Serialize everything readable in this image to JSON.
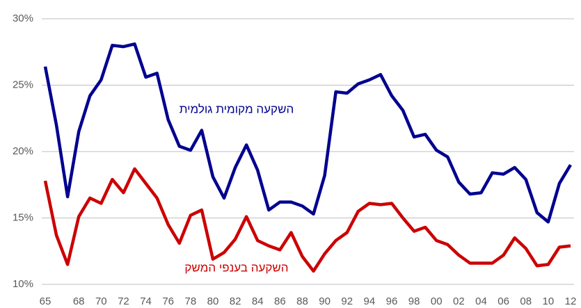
{
  "chart_data": {
    "type": "line",
    "categories": [
      "65",
      null,
      null,
      "68",
      null,
      "70",
      null,
      "72",
      null,
      "74",
      null,
      "76",
      null,
      "78",
      null,
      "80",
      null,
      "82",
      null,
      "84",
      null,
      "86",
      null,
      "88",
      null,
      "90",
      null,
      "92",
      null,
      "94",
      null,
      "96",
      null,
      "98",
      null,
      "00",
      null,
      "02",
      null,
      "04",
      null,
      "06",
      null,
      "08",
      null,
      "10",
      null,
      "12"
    ],
    "series": [
      {
        "name": "השקעה מקומית גולמית",
        "color": "#000090",
        "values": [
          26.4,
          22.0,
          16.6,
          21.5,
          24.2,
          25.4,
          28.0,
          27.9,
          28.1,
          25.6,
          25.9,
          22.4,
          20.4,
          20.1,
          21.6,
          18.1,
          16.5,
          18.8,
          20.5,
          18.6,
          15.6,
          16.2,
          16.2,
          15.9,
          15.3,
          18.2,
          24.5,
          24.4,
          25.1,
          25.4,
          25.8,
          24.2,
          23.1,
          21.1,
          21.3,
          20.1,
          19.6,
          17.7,
          16.8,
          16.9,
          18.4,
          18.3,
          18.8,
          17.9,
          15.4,
          14.7,
          17.6,
          19.0
        ]
      },
      {
        "name": "השקעה בענפי המשק",
        "color": "#cc0000",
        "values": [
          17.8,
          13.7,
          11.5,
          15.1,
          16.5,
          16.1,
          17.9,
          16.9,
          18.7,
          17.6,
          16.5,
          14.5,
          13.1,
          15.2,
          15.6,
          11.9,
          12.4,
          13.4,
          15.1,
          13.3,
          12.9,
          12.6,
          13.9,
          12.1,
          11.0,
          12.3,
          13.3,
          13.9,
          15.5,
          16.1,
          16.0,
          16.1,
          15.0,
          14.0,
          14.3,
          13.3,
          13.0,
          12.2,
          11.6,
          11.6,
          11.6,
          12.2,
          13.5,
          12.7,
          11.4,
          11.5,
          12.8,
          12.9
        ]
      }
    ],
    "ylim": [
      10,
      30
    ],
    "yticks": [
      {
        "value": 10,
        "label": "10%"
      },
      {
        "value": 15,
        "label": "15%"
      },
      {
        "value": 20,
        "label": "20%"
      },
      {
        "value": 25,
        "label": "25%"
      },
      {
        "value": 30,
        "label": "30%"
      }
    ],
    "grid": true
  }
}
